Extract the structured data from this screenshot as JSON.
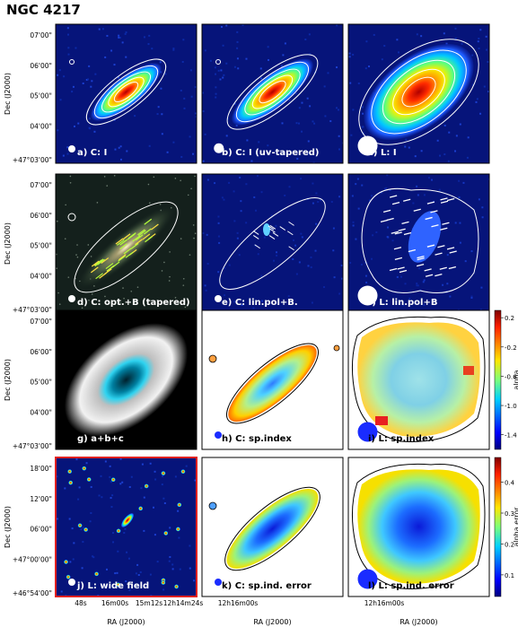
{
  "figure": {
    "title": "NGC 4217",
    "colors": {
      "frame": "#000000",
      "highlight_frame": "#e02020",
      "contour": "#ffffff",
      "bg_dark": "#06147a"
    }
  },
  "chart_data": [
    {
      "type": "heatmap",
      "panel_label": "a) C: I",
      "map": "intensity",
      "contour_color": "white",
      "beam": "small"
    },
    {
      "type": "heatmap",
      "panel_label": "b) C: I (uv-tapered)",
      "map": "intensity",
      "contour_color": "white",
      "beam": "medium"
    },
    {
      "type": "heatmap",
      "panel_label": "c) L: I",
      "map": "intensity",
      "contour_color": "white",
      "beam": "large"
    },
    {
      "type": "heatmap",
      "panel_label": "d) C: opt.+B (tapered)",
      "map": "optical",
      "overlay": "B vectors",
      "beam": "small"
    },
    {
      "type": "heatmap",
      "panel_label": "e) C: lin.pol+B.",
      "map": "polarized",
      "overlay": "B vectors",
      "beam": "small"
    },
    {
      "type": "heatmap",
      "panel_label": "f) L: lin.pol+B",
      "map": "polarized",
      "overlay": "B vectors",
      "beam": "large"
    },
    {
      "type": "heatmap",
      "panel_label": "g) a+b+c",
      "map": "composite",
      "beam": "none"
    },
    {
      "type": "heatmap",
      "panel_label": "h) C: sp.index",
      "map": "spectral index",
      "beam": "small"
    },
    {
      "type": "heatmap",
      "panel_label": "i) L: sp.index",
      "map": "spectral index",
      "beam": "large",
      "colorbar": {
        "label": "alpha",
        "ticks": [
          0.2,
          -0.2,
          -0.6,
          -1.0,
          -1.4
        ],
        "range": [
          -1.6,
          0.3
        ]
      }
    },
    {
      "type": "heatmap",
      "panel_label": "j) L: wide field",
      "map": "wide field",
      "beam": "small"
    },
    {
      "type": "heatmap",
      "panel_label": "k) C: sp.ind. error",
      "map": "spectral index error",
      "beam": "small"
    },
    {
      "type": "heatmap",
      "panel_label": "l) L: sp.ind. error",
      "map": "spectral index error",
      "beam": "large",
      "colorbar": {
        "label": "alpha error",
        "ticks": [
          0.4,
          0.3,
          0.2,
          0.1
        ],
        "range": [
          0.03,
          0.48
        ]
      }
    }
  ],
  "axes": {
    "ylabel": "Dec (J2000)",
    "xlabel": "RA (J2000)",
    "dec_ticks_main": [
      "07'00\"",
      "06'00\"",
      "05'00\"",
      "04'00\"",
      "+47°03'00\""
    ],
    "dec_ticks_wide": [
      "18'00\"",
      "12'00\"",
      "06'00\"",
      "+47°00'00\"",
      "+46°54'00\""
    ],
    "ra_ticks_col1": [
      "48s",
      "16m00s",
      "15m12s",
      "12h14m24s"
    ],
    "ra_ticks_col2": [
      "12h16m00s"
    ],
    "ra_ticks_col3": [
      "12h16m00s"
    ]
  }
}
